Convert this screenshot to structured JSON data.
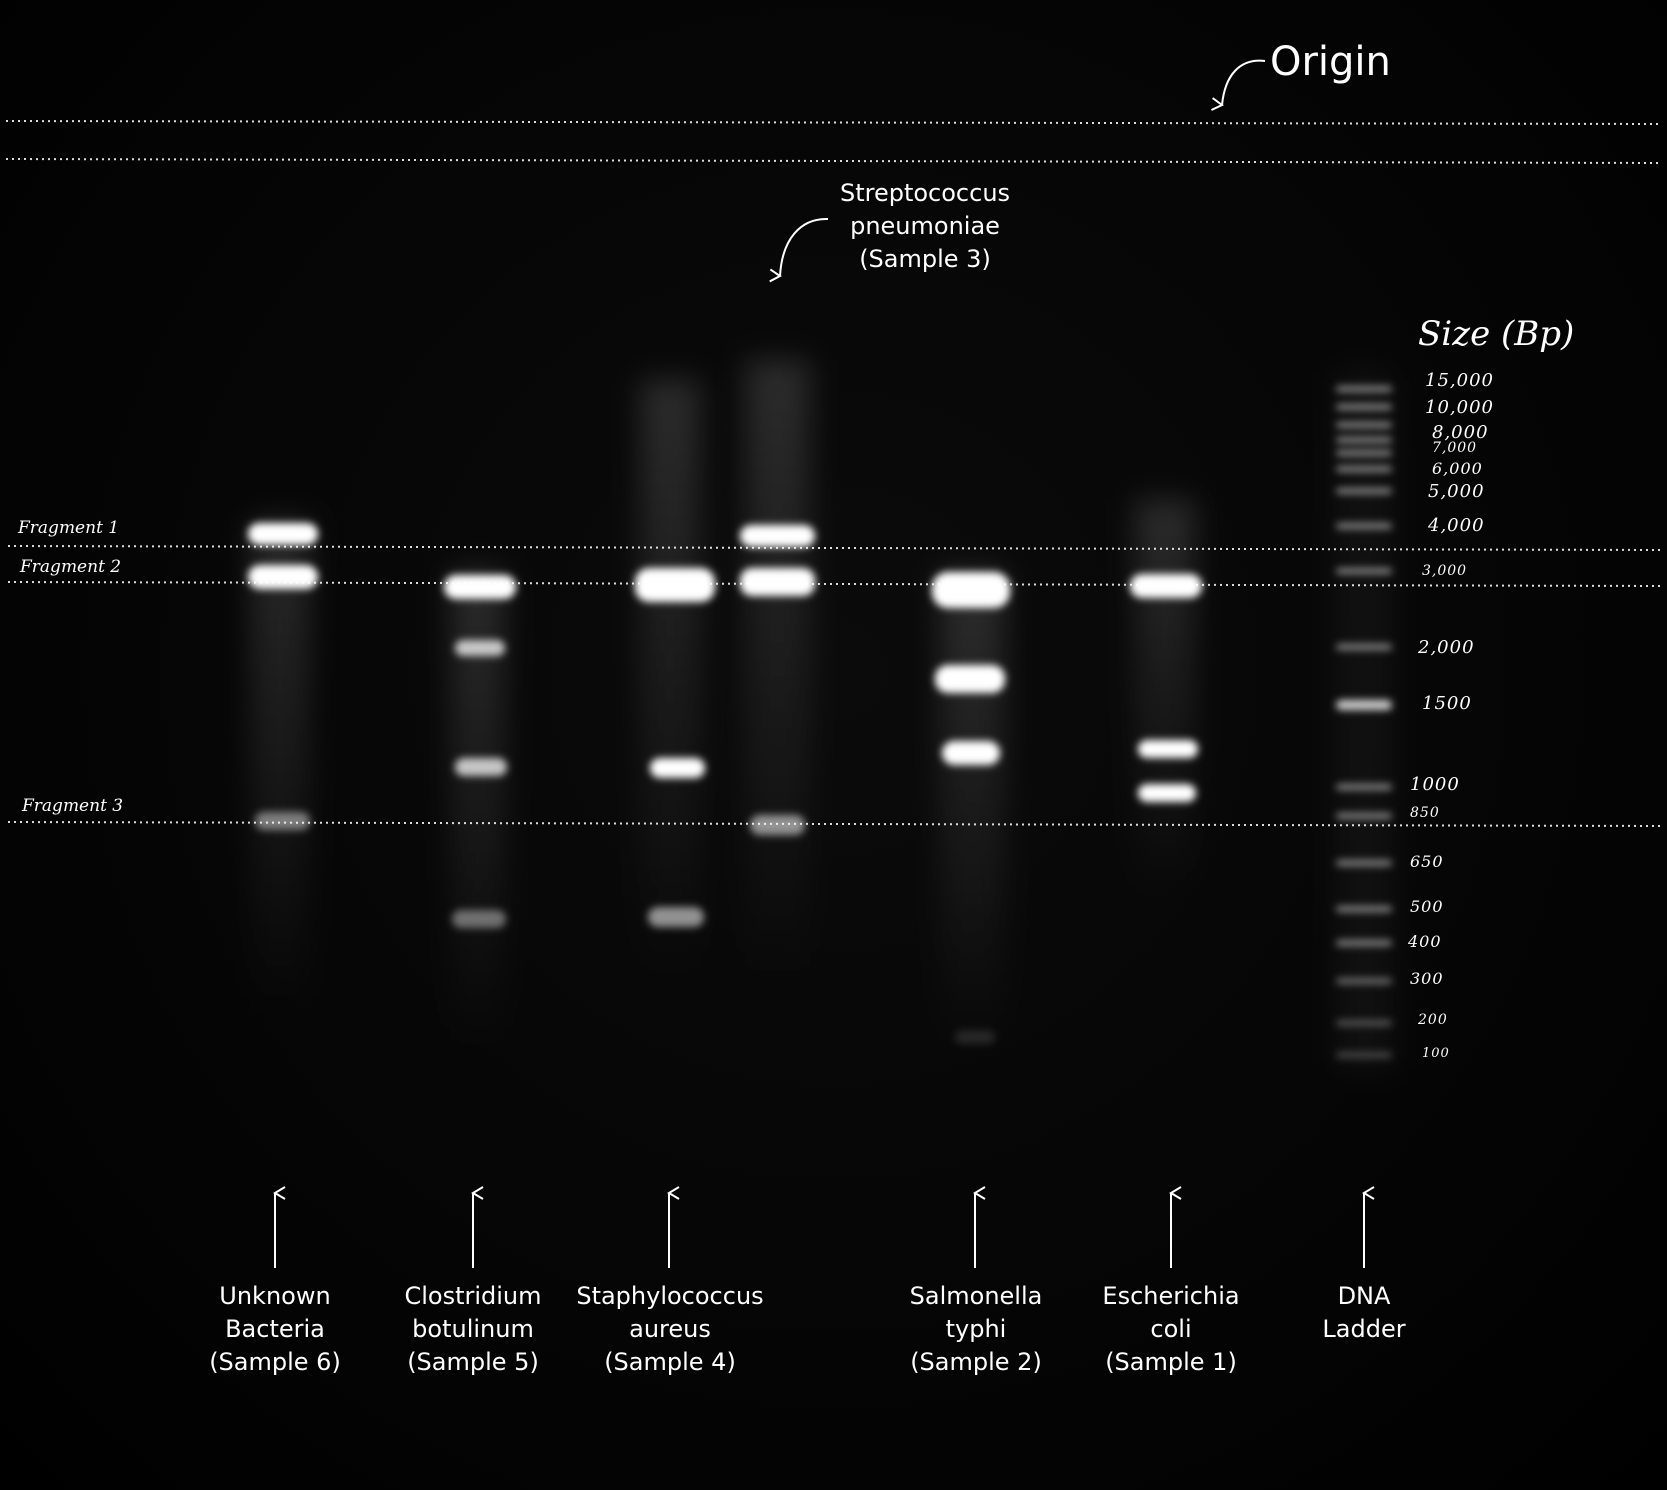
{
  "origin_label": "Origin",
  "size_header": "Size (Bp)",
  "fragments": [
    "Fragment 1",
    "Fragment 2",
    "Fragment 3"
  ],
  "ladder_sizes": [
    "15,000",
    "10,000",
    "8,000",
    "7,000",
    "6,000",
    "5,000",
    "4,000",
    "3,000",
    "2,000",
    "1500",
    "1000",
    "850",
    "650",
    "500",
    "400",
    "300",
    "200",
    "100"
  ],
  "lanes": [
    {
      "label": "Unknown\nBacteria\n(Sample 6)"
    },
    {
      "label": "Clostridium\nbotulinum\n(Sample 5)"
    },
    {
      "label": "Staphylococcus\naureus\n(Sample 4)"
    },
    {
      "label": "Streptococcus\npneumoniae\n(Sample 3)"
    },
    {
      "label": "Salmonella\ntyphi\n(Sample 2)"
    },
    {
      "label": "Escherichia\ncoli\n(Sample 1)"
    },
    {
      "label": "DNA\nLadder"
    }
  ]
}
